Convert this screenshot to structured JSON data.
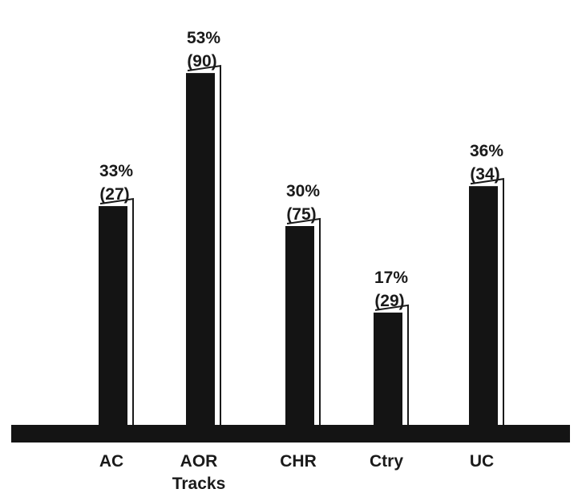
{
  "chart_data": {
    "type": "bar",
    "categories": [
      [
        "AC"
      ],
      [
        "AOR",
        "Tracks"
      ],
      [
        "CHR"
      ],
      [
        "Ctry"
      ],
      [
        "UC"
      ]
    ],
    "values": [
      33,
      53,
      30,
      17,
      36
    ],
    "value_labels": [
      "33%",
      "53%",
      "30%",
      "17%",
      "36%"
    ],
    "count_labels": [
      "(27)",
      "(90)",
      "(75)",
      "(29)",
      "(34)"
    ],
    "ylim": [
      0,
      60
    ],
    "grid": false,
    "legend": "none",
    "colors": {
      "bar": "#141414",
      "baseline": "#141414",
      "text": "#1a1a1a",
      "background": "#ffffff"
    }
  }
}
